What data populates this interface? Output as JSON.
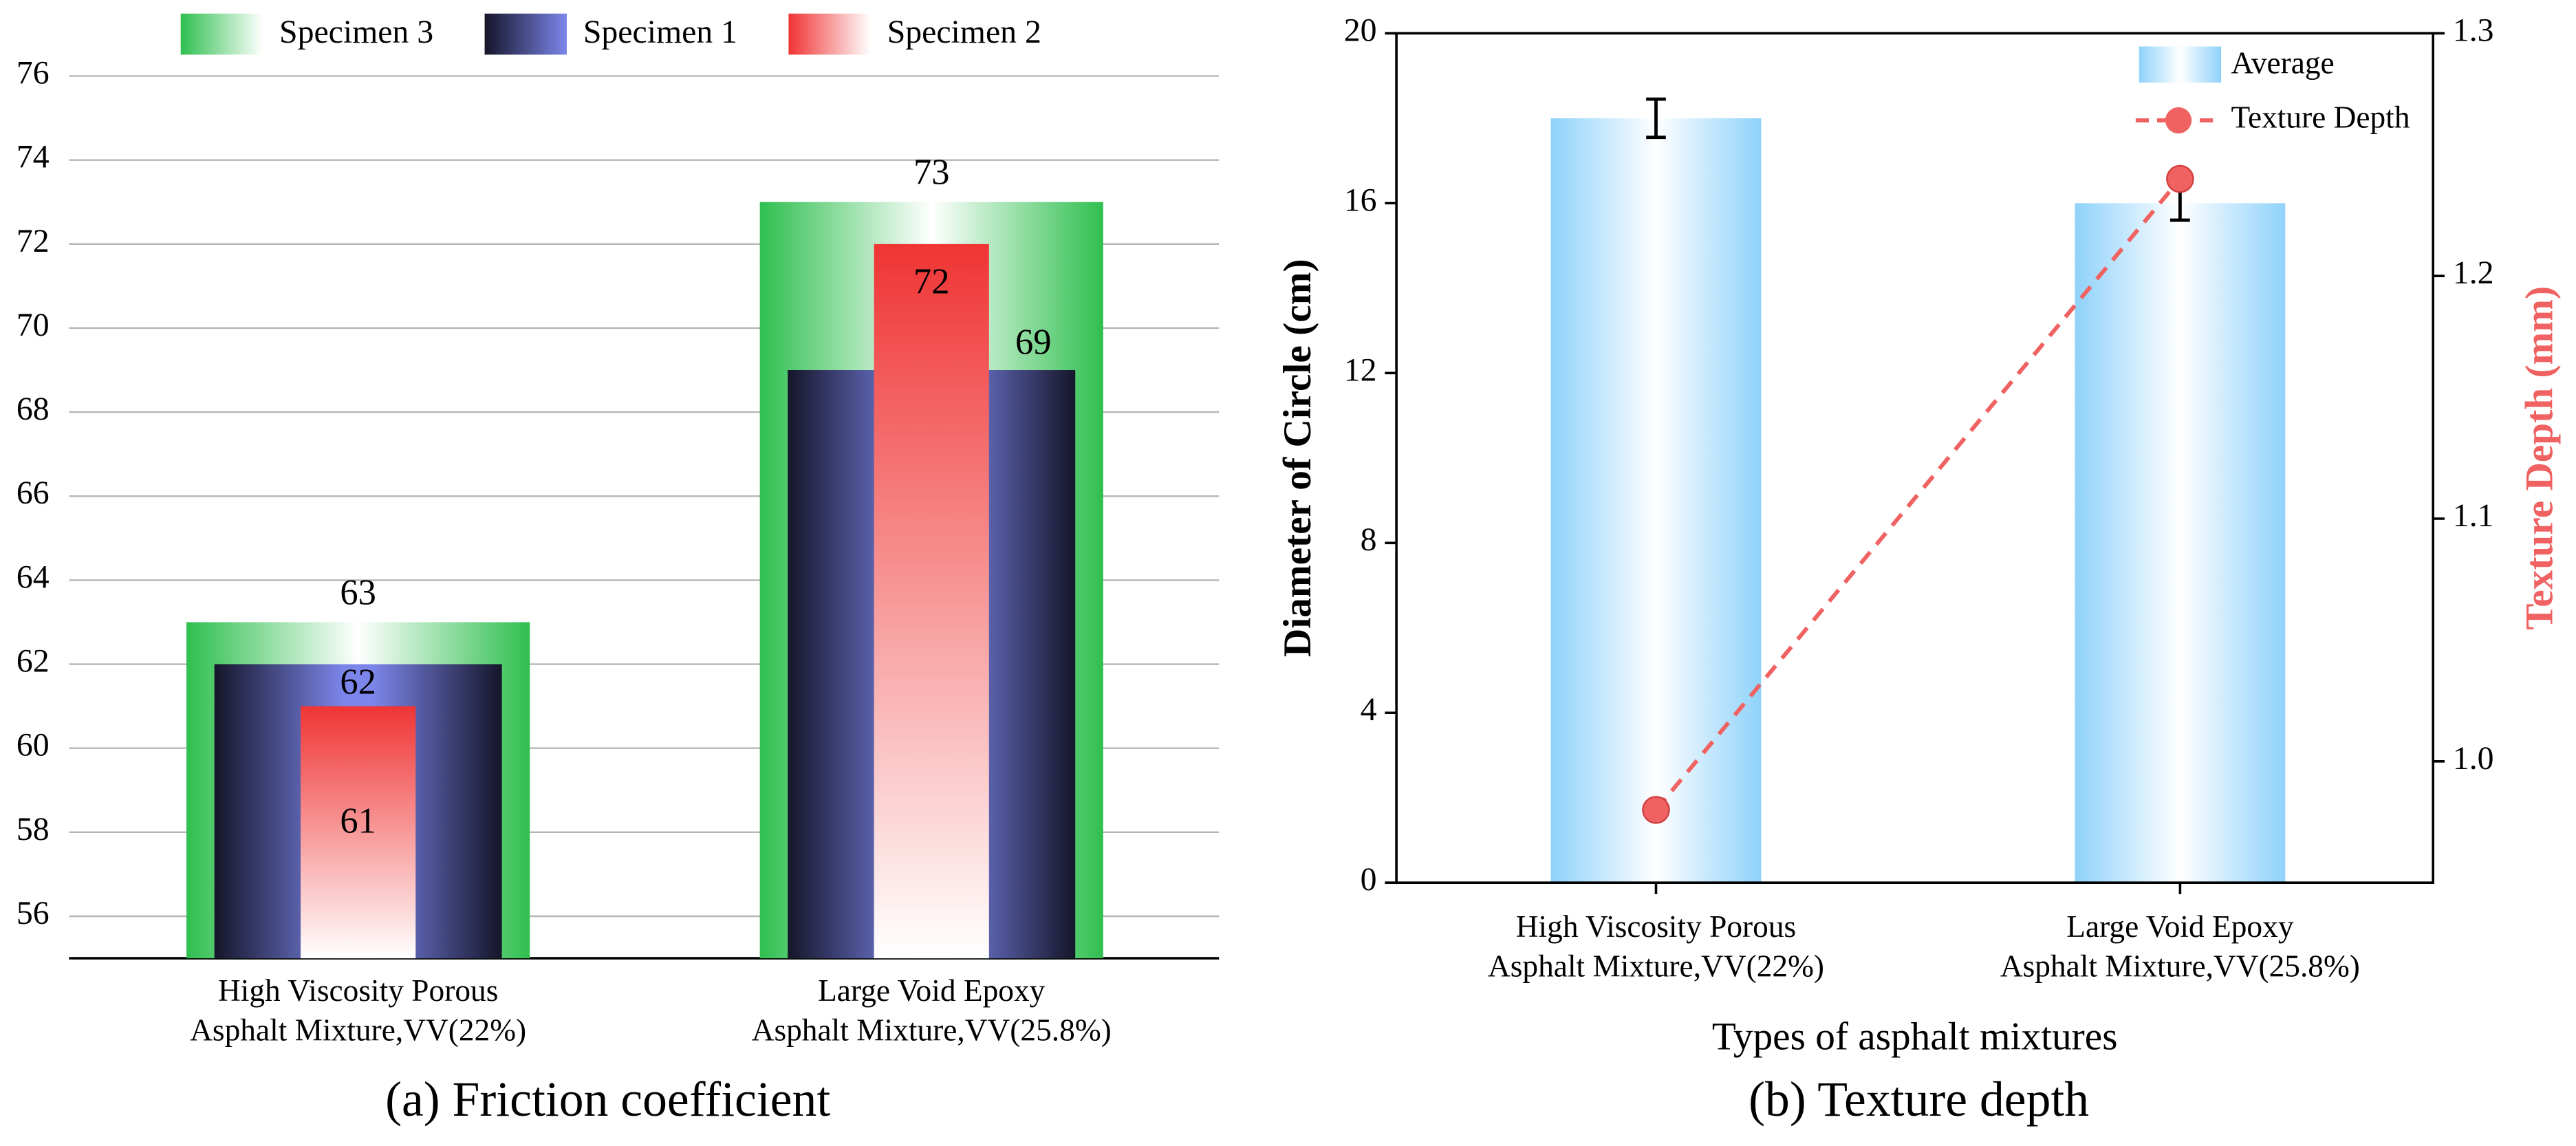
{
  "chart_data": [
    {
      "type": "overlap-bar",
      "categories": [
        "High Viscosity Porous\nAsphalt Mixture,VV(22%)",
        "Large Void Epoxy\nAsphalt Mixture,VV(25.8%)"
      ],
      "series": [
        {
          "name": "Specimen 3",
          "color": "#2fbf4f",
          "values": [
            63,
            73
          ]
        },
        {
          "name": "Specimen 1",
          "color": "#7c86ea",
          "values": [
            62,
            69
          ]
        },
        {
          "name": "Specimen 2",
          "color": "#f03434",
          "values": [
            61,
            72
          ]
        }
      ],
      "ylim": [
        55,
        76
      ],
      "yticks": [
        56,
        58,
        60,
        62,
        64,
        66,
        68,
        70,
        72,
        74,
        76
      ],
      "grid": true,
      "legend": "top",
      "caption": "(a) Friction coefficient"
    },
    {
      "type": "combo",
      "categories": [
        "High Viscosity Porous\nAsphalt Mixture,VV(22%)",
        "Large Void Epoxy\nAsphalt Mixture,VV(25.8%)"
      ],
      "series": [
        {
          "name": "Average",
          "color": "#8fd2fa",
          "values": [
            18,
            16
          ],
          "errors": [
            0.45,
            0.4
          ]
        },
        {
          "name": "Texture Depth",
          "color": "#f06262",
          "values": [
            0.98,
            1.24
          ],
          "axis": "y2"
        }
      ],
      "ylim": [
        0,
        20
      ],
      "yticks": [
        0,
        4,
        8,
        12,
        16,
        20
      ],
      "y2lim": [
        0.95,
        1.3
      ],
      "y2ticks": [
        {
          "value": 1.0,
          "label": "1.0"
        },
        1.1,
        1.2,
        1.3
      ],
      "xlabel": "Types of asphalt mixtures",
      "ylabel": "Diameter of Circle (cm)",
      "y2label": "Texture Depth (mm)",
      "legend": "upper right",
      "caption": "(b) Texture depth"
    }
  ]
}
